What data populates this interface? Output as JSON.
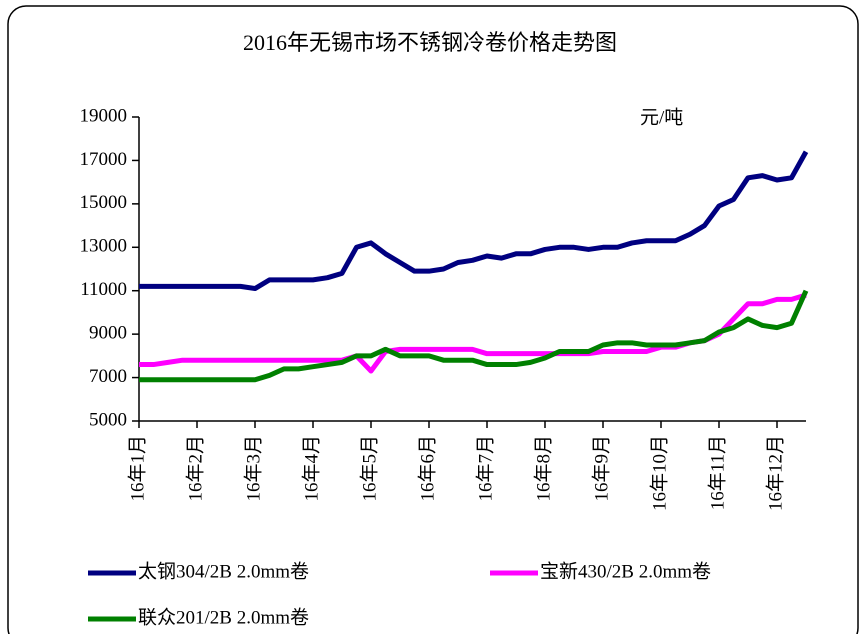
{
  "chart_data": {
    "type": "line",
    "title": "2016年无锡市场不锈钢冷卷价格走势图",
    "unit_label": "元/吨",
    "categories": [
      "16年1月",
      null,
      null,
      null,
      "16年2月",
      null,
      null,
      null,
      "16年3月",
      null,
      null,
      null,
      "16年4月",
      null,
      null,
      null,
      "16年5月",
      null,
      null,
      null,
      "16年6月",
      null,
      null,
      null,
      "16年7月",
      null,
      null,
      null,
      "16年8月",
      null,
      null,
      null,
      "16年9月",
      null,
      null,
      null,
      "16年10月",
      null,
      null,
      null,
      "16年11月",
      null,
      null,
      null,
      "16年12月",
      null,
      null
    ],
    "series": [
      {
        "name": "太钢304/2B 2.0mm卷",
        "color": "#000080",
        "values": [
          11200,
          11200,
          11200,
          11200,
          11200,
          11200,
          11200,
          11200,
          11100,
          11500,
          11500,
          11500,
          11500,
          11600,
          11800,
          13000,
          13200,
          12700,
          12300,
          11900,
          11900,
          12000,
          12300,
          12400,
          12600,
          12500,
          12700,
          12700,
          12900,
          13000,
          13000,
          12900,
          13000,
          13000,
          13200,
          13300,
          13300,
          13300,
          13600,
          14000,
          14900,
          15200,
          16200,
          16300,
          16100,
          16200,
          17400
        ]
      },
      {
        "name": "宝新430/2B 2.0mm卷",
        "color": "#ff00ff",
        "values": [
          7600,
          7600,
          7700,
          7800,
          7800,
          7800,
          7800,
          7800,
          7800,
          7800,
          7800,
          7800,
          7800,
          7800,
          7800,
          8000,
          7300,
          8200,
          8300,
          8300,
          8300,
          8300,
          8300,
          8300,
          8100,
          8100,
          8100,
          8100,
          8100,
          8100,
          8100,
          8100,
          8200,
          8200,
          8200,
          8200,
          8400,
          8400,
          8600,
          8700,
          9000,
          9700,
          10400,
          10400,
          10600,
          10600,
          10800
        ]
      },
      {
        "name": "联众201/2B 2.0mm卷",
        "color": "#008000",
        "values": [
          6900,
          6900,
          6900,
          6900,
          6900,
          6900,
          6900,
          6900,
          6900,
          7100,
          7400,
          7400,
          7500,
          7600,
          7700,
          8000,
          8000,
          8300,
          8000,
          8000,
          8000,
          7800,
          7800,
          7800,
          7600,
          7600,
          7600,
          7700,
          7900,
          8200,
          8200,
          8200,
          8500,
          8600,
          8600,
          8500,
          8500,
          8500,
          8600,
          8700,
          9100,
          9300,
          9700,
          9400,
          9300,
          9500,
          11000
        ]
      }
    ],
    "ylim": [
      5000,
      19000
    ],
    "yticks": [
      5000,
      7000,
      9000,
      11000,
      13000,
      15000,
      17000,
      19000
    ],
    "grid": false
  }
}
